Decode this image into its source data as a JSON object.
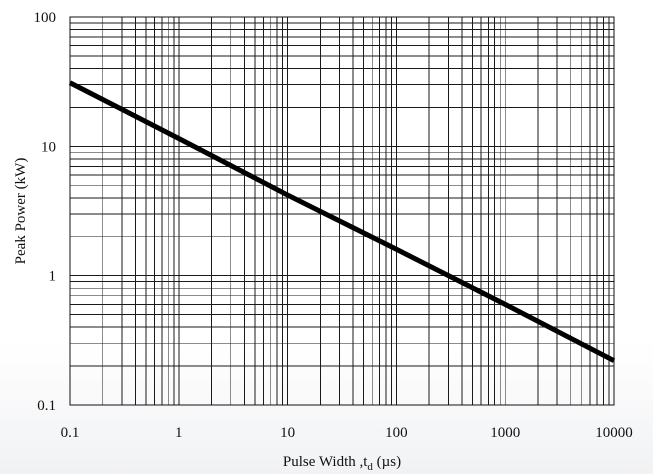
{
  "chart_data": {
    "type": "line",
    "title": "",
    "xlabel": {
      "main": "Pulse Width ,t",
      "sub": "d",
      "unit": " (µs)"
    },
    "ylabel": "Peak Power  (kW)",
    "x_scale": "log",
    "y_scale": "log",
    "xlim": [
      0.1,
      10000
    ],
    "ylim": [
      0.1,
      100
    ],
    "x_ticks": [
      "0.1",
      "1",
      "10",
      "100",
      "1000",
      "10000"
    ],
    "y_ticks": [
      "0.1",
      "1",
      "10",
      "100"
    ],
    "grid": "major and minor (log)",
    "legend": "none",
    "series": [
      {
        "x": [
          0.1,
          1,
          10,
          100,
          1000,
          10000
        ],
        "y": [
          31,
          11.5,
          4.2,
          1.6,
          0.6,
          0.22
        ]
      }
    ],
    "colors": {
      "line": "#000000",
      "grid": "#1a1a1a"
    }
  }
}
